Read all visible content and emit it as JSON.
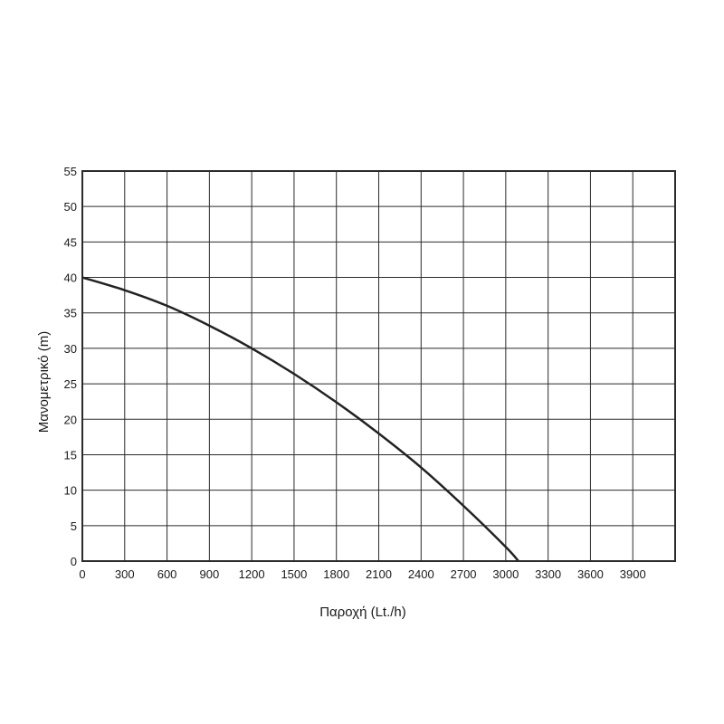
{
  "chart_data": {
    "type": "line",
    "title": "",
    "xlabel": "Παροχή (Lt./h)",
    "ylabel": "Μανομετρικό  (m)",
    "xlim": [
      0,
      4200
    ],
    "ylim": [
      0,
      55
    ],
    "x_ticks": [
      0,
      300,
      600,
      900,
      1200,
      1500,
      1800,
      2100,
      2400,
      2700,
      3000,
      3300,
      3600,
      3900
    ],
    "y_ticks": [
      0,
      5,
      10,
      15,
      20,
      25,
      30,
      35,
      40,
      45,
      50,
      55
    ],
    "grid": true,
    "series": [
      {
        "x": [
          0,
          300,
          600,
          900,
          1200,
          1500,
          1800,
          2100,
          2400,
          2700,
          3000,
          3090
        ],
        "y": [
          40,
          38.2,
          36,
          33.2,
          30,
          26.4,
          22.4,
          18,
          13.2,
          7.8,
          2,
          0
        ]
      }
    ],
    "colors": {
      "line": "#222222",
      "grid": "#2b2b2b"
    }
  }
}
